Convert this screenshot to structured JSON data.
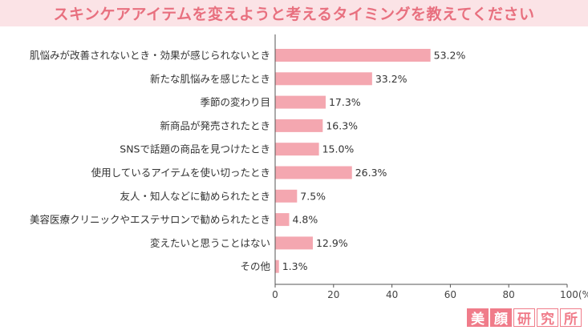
{
  "chart_data": {
    "type": "bar",
    "orientation": "horizontal",
    "title": "スキンケアアイテムを変えようと考えるタイミングを教えてください",
    "categories": [
      "肌悩みが改善されないとき・効果が感じられないとき",
      "新たな肌悩みを感じたとき",
      "季節の変わり目",
      "新商品が発売されたとき",
      "SNSで話題の商品を見つけたとき",
      "使用しているアイテムを使い切ったとき",
      "友人・知人などに勧められたとき",
      "美容医療クリニックやエステサロンで勧められたとき",
      "変えたいと思うことはない",
      "その他"
    ],
    "values": [
      53.2,
      33.2,
      17.3,
      16.3,
      15.0,
      26.3,
      7.5,
      4.8,
      12.9,
      1.3
    ],
    "value_labels": [
      "53.2%",
      "33.2%",
      "17.3%",
      "16.3%",
      "15.0%",
      "26.3%",
      "7.5%",
      "4.8%",
      "12.9%",
      "1.3%"
    ],
    "xlim": [
      0,
      100
    ],
    "xticks": [
      "0",
      "20",
      "40",
      "60",
      "80",
      "100(%)"
    ],
    "xtick_values": [
      0,
      20,
      40,
      60,
      80,
      100
    ],
    "grid": false,
    "bar_color": "#f4a7b0",
    "title_color": "#e8707f",
    "title_bg": "#fbe3e6"
  },
  "brand": {
    "chars": [
      "美",
      "顔",
      "研",
      "究",
      "所"
    ]
  }
}
